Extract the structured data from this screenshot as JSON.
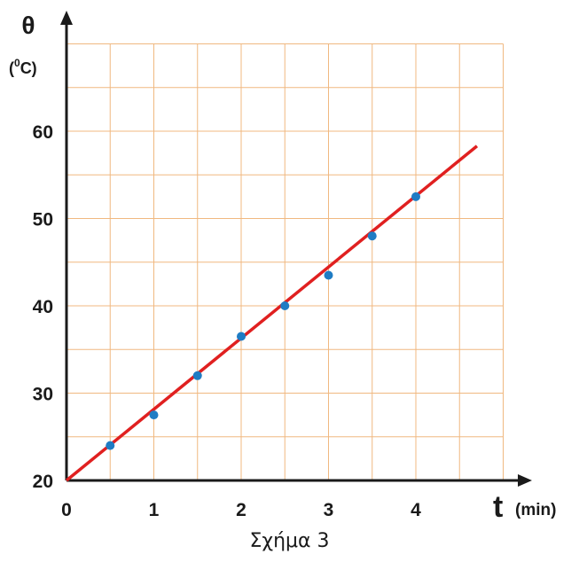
{
  "chart_data": {
    "type": "scatter",
    "caption": "Σχήμα 3",
    "xlabel": "t",
    "xlabel_unit": "(min)",
    "ylabel": "θ",
    "ylabel_unit_prefix": "(",
    "ylabel_unit_sup": "0",
    "ylabel_unit_suffix": "C)",
    "xlim": [
      0,
      5
    ],
    "ylim": [
      20,
      70
    ],
    "x_ticks": [
      "0",
      "1",
      "2",
      "3",
      "4"
    ],
    "y_ticks": [
      "20",
      "30",
      "40",
      "50",
      "60"
    ],
    "grid": true,
    "colors": {
      "grid": "#f0b880",
      "axis": "#1a1a1a",
      "line": "#e02020",
      "points": "#1f7cc4"
    },
    "points": [
      {
        "x": 0.5,
        "y": 24
      },
      {
        "x": 1.0,
        "y": 27.5
      },
      {
        "x": 1.5,
        "y": 32
      },
      {
        "x": 2.0,
        "y": 36.5
      },
      {
        "x": 2.5,
        "y": 40
      },
      {
        "x": 3.0,
        "y": 43.5
      },
      {
        "x": 3.5,
        "y": 48
      },
      {
        "x": 4.0,
        "y": 52.5
      }
    ],
    "fit_line": {
      "x": [
        0,
        4.7
      ],
      "y": [
        20,
        58.3
      ]
    }
  }
}
